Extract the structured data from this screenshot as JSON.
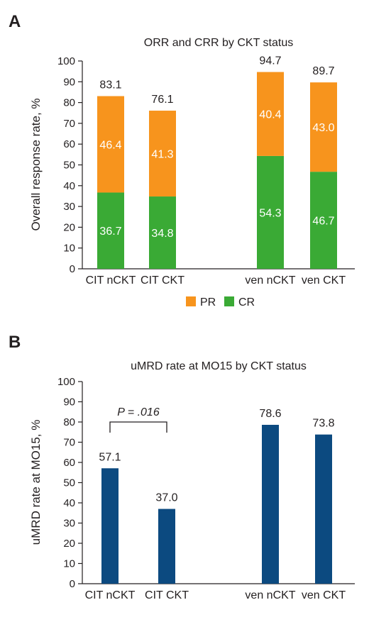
{
  "chart_data": [
    {
      "panel": "A",
      "type": "bar",
      "stacked": true,
      "title": "ORR and CRR by CKT status",
      "ylabel": "Overall response rate, %",
      "xlabel": "",
      "ylim": [
        0,
        100
      ],
      "yticks": [
        0,
        10,
        20,
        30,
        40,
        50,
        60,
        70,
        80,
        90,
        100
      ],
      "categories": [
        "CIT nCKT",
        "CIT CKT",
        "ven nCKT",
        "ven CKT"
      ],
      "series": [
        {
          "name": "CR",
          "color": "#3aaa35",
          "values": [
            36.7,
            34.8,
            54.3,
            46.7
          ],
          "labels": [
            "36.7",
            "34.8",
            "54.3",
            "46.7"
          ]
        },
        {
          "name": "PR",
          "color": "#f7941d",
          "values": [
            46.4,
            41.3,
            40.4,
            43.0
          ],
          "labels": [
            "46.4",
            "41.3",
            "40.4",
            "43.0"
          ]
        }
      ],
      "totals": [
        83.1,
        76.1,
        94.7,
        89.7
      ],
      "total_labels": [
        "83.1",
        "76.1",
        "94.7",
        "89.7"
      ],
      "legend": {
        "position": "bottom",
        "order": [
          "PR",
          "CR"
        ]
      },
      "grid": false
    },
    {
      "panel": "B",
      "type": "bar",
      "stacked": false,
      "title": "uMRD rate at MO15 by CKT status",
      "ylabel": "uMRD rate at MO15, %",
      "xlabel": "",
      "ylim": [
        0,
        100
      ],
      "yticks": [
        0,
        10,
        20,
        30,
        40,
        50,
        60,
        70,
        80,
        90,
        100
      ],
      "categories": [
        "CIT nCKT",
        "CIT CKT",
        "ven nCKT",
        "ven CKT"
      ],
      "series": [
        {
          "color": "#0c4a80",
          "values": [
            57.1,
            37.0,
            78.6,
            73.8
          ],
          "labels": [
            "57.1",
            "37.0",
            "78.6",
            "73.8"
          ]
        }
      ],
      "annotation": {
        "text": "P = .016",
        "between": [
          "CIT nCKT",
          "CIT CKT"
        ]
      },
      "grid": false
    }
  ]
}
